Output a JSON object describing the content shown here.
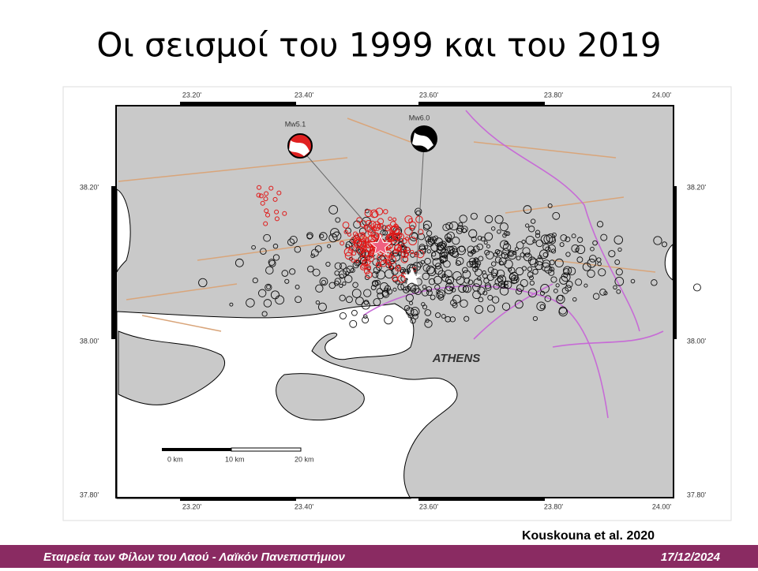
{
  "title": "Οι σεισμοί του 1999 και του 2019",
  "map": {
    "lon_labels": [
      "23.20'",
      "23.40'",
      "23.60'",
      "23.80'",
      "24.00'"
    ],
    "lat_labels": [
      "38.20'",
      "38.00'",
      "37.80'"
    ],
    "events": [
      "Mw5.1",
      "Mw6.0"
    ],
    "city": "ATHENS",
    "scale_labels": [
      "0 km",
      "10 km",
      "20 km"
    ]
  },
  "citation": "Kouskouna et al. 2020",
  "footer": {
    "organization": "Εταιρεία των Φίλων του Λαού - Λαϊκόν Πανεπιστήμιον",
    "date": "17/12/2024"
  }
}
